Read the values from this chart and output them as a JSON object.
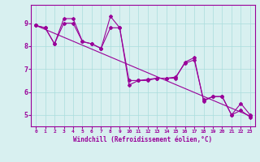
{
  "line1_x": [
    0,
    1,
    2,
    3,
    4,
    5,
    6,
    7,
    8,
    9,
    10,
    11,
    12,
    13,
    14,
    15,
    16,
    17,
    18,
    19,
    20,
    21,
    22,
    23
  ],
  "line1_y": [
    8.9,
    8.8,
    8.1,
    9.2,
    9.2,
    8.2,
    8.1,
    7.9,
    9.3,
    8.8,
    6.3,
    6.5,
    6.5,
    6.6,
    6.6,
    6.6,
    7.3,
    7.5,
    5.6,
    5.8,
    5.8,
    5.0,
    5.5,
    5.0
  ],
  "line2_x": [
    0,
    1,
    2,
    3,
    4,
    5,
    6,
    7,
    8,
    9,
    10,
    11,
    12,
    13,
    14,
    15,
    16,
    17,
    18,
    19,
    20,
    21,
    22,
    23
  ],
  "line2_y": [
    8.9,
    8.8,
    8.1,
    9.0,
    9.0,
    8.2,
    8.1,
    7.9,
    8.8,
    8.8,
    6.5,
    6.5,
    6.55,
    6.6,
    6.6,
    6.65,
    7.25,
    7.4,
    5.65,
    5.8,
    5.8,
    5.0,
    5.2,
    4.9
  ],
  "line3_x": [
    0,
    23
  ],
  "line3_y": [
    8.9,
    4.95
  ],
  "line_color": "#990099",
  "bg_color": "#d8f0f0",
  "grid_color": "#aadddd",
  "xlabel": "Windchill (Refroidissement éolien,°C)",
  "xlim": [
    -0.5,
    23.5
  ],
  "ylim": [
    4.5,
    9.8
  ],
  "yticks": [
    5,
    6,
    7,
    8,
    9
  ],
  "xticks": [
    0,
    1,
    2,
    3,
    4,
    5,
    6,
    7,
    8,
    9,
    10,
    11,
    12,
    13,
    14,
    15,
    16,
    17,
    18,
    19,
    20,
    21,
    22,
    23
  ]
}
